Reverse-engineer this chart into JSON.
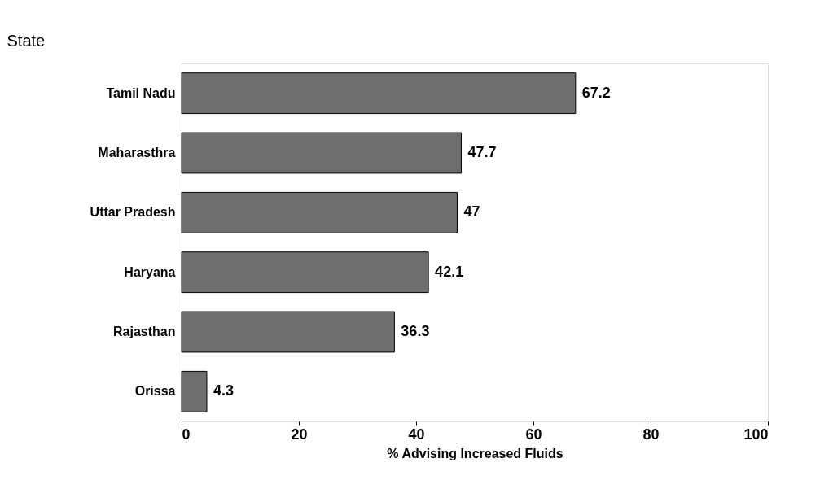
{
  "chart_data": {
    "type": "bar",
    "orientation": "horizontal",
    "ylabel": "State",
    "xlabel": "% Advising Increased Fluids",
    "categories": [
      "Tamil Nadu",
      "Maharasthra",
      "Uttar Pradesh",
      "Haryana",
      "Rajasthan",
      "Orissa"
    ],
    "values": [
      67.2,
      47.7,
      47,
      42.1,
      36.3,
      4.3
    ],
    "color": "#6e6e6e",
    "xlim": [
      0,
      100
    ],
    "xticks": [
      0,
      20,
      40,
      60,
      80,
      100
    ],
    "grid": false,
    "data_labels": true
  }
}
